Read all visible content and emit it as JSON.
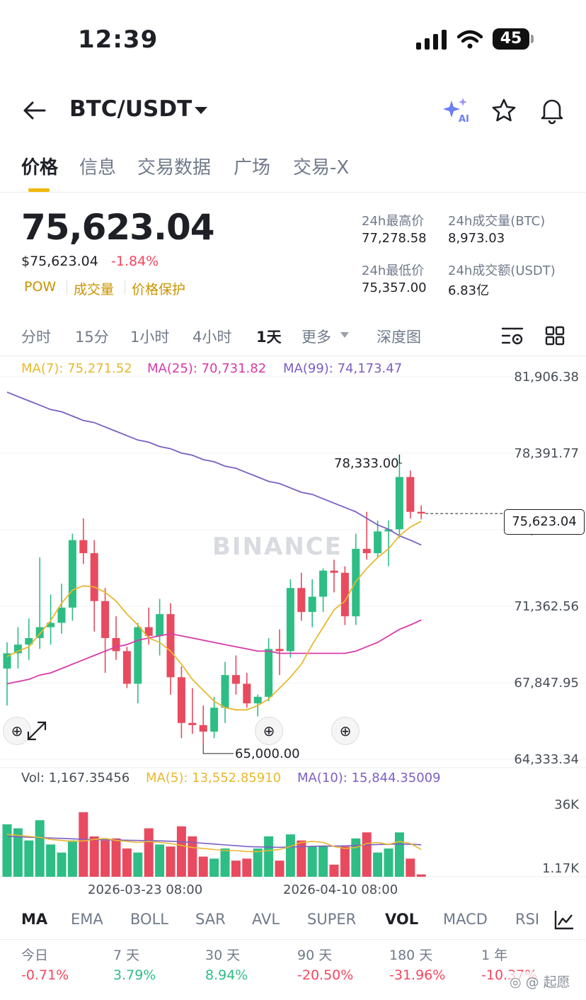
{
  "status_bar": {
    "time": "12:39",
    "battery": "45"
  },
  "header": {
    "pair": "BTC/USDT",
    "ai_badge": "AI"
  },
  "tabs": [
    {
      "label": "价格",
      "active": true
    },
    {
      "label": "信息"
    },
    {
      "label": "交易数据"
    },
    {
      "label": "广场"
    },
    {
      "label": "交易-X"
    }
  ],
  "price": {
    "last": "75,623.04",
    "usd": "$75,623.04",
    "change": "-1.84%",
    "tags": [
      "POW",
      "成交量",
      "价格保护"
    ]
  },
  "stats": {
    "high_label": "24h最高价",
    "high": "77,278.58",
    "vol_btc_label": "24h成交量(BTC)",
    "vol_btc": "8,973.03",
    "low_label": "24h最低价",
    "low": "75,357.00",
    "vol_usdt_label": "24h成交额(USDT)",
    "vol_usdt": "6.83亿"
  },
  "intervals": [
    "分时",
    "15分",
    "1小时",
    "4小时",
    "1天",
    "更多",
    "深度图"
  ],
  "active_interval": "1天",
  "ma_legend": {
    "ma7": "MA(7): 75,271.52",
    "ma25": "MA(25): 70,731.82",
    "ma99": "MA(99): 74,173.47"
  },
  "price_axis": [
    "81,906.38",
    "78,391.77",
    "74,877.16",
    "71,362.56",
    "67,847.95",
    "64,333.34"
  ],
  "annotations": {
    "high": "78,333.00",
    "low": "65,000.00",
    "current": "75,623.04"
  },
  "watermark": "BINANCE",
  "vol_legend": {
    "vol": "Vol: 1,167.35456",
    "ma5": "MA(5): 13,552.85910",
    "ma10": "MA(10): 15,844.35009"
  },
  "vol_axis": [
    "36K",
    "1.17K"
  ],
  "dates": [
    "2026-03-23 08:00",
    "2026-04-10 08:00"
  ],
  "indicators": [
    "MA",
    "EMA",
    "BOLL",
    "SAR",
    "AVL",
    "SUPER",
    "VOL",
    "MACD",
    "RSI"
  ],
  "active_indicators": [
    "MA",
    "VOL"
  ],
  "performance": [
    {
      "label": "今日",
      "value": "-0.71%",
      "dir": "down"
    },
    {
      "label": "7 天",
      "value": "3.79%",
      "dir": "up"
    },
    {
      "label": "30 天",
      "value": "8.94%",
      "dir": "up"
    },
    {
      "label": "90 天",
      "value": "-20.50%",
      "dir": "down"
    },
    {
      "label": "180 天",
      "value": "-31.96%",
      "dir": "down"
    },
    {
      "label": "1 年",
      "value": "-10.37%",
      "dir": "down"
    }
  ],
  "corner_watermark": "起愿",
  "colors": {
    "up": "#2ebd85",
    "down": "#e84a5f",
    "ma7": "#e8b82e",
    "ma25": "#d63aa8",
    "ma99": "#7b5fc4",
    "accent": "#f0b90b"
  },
  "chart_data": {
    "type": "candlestick",
    "price_range": [
      64333.34,
      81906.38
    ],
    "volume_range": [
      0,
      40000
    ],
    "annotations": {
      "high": 78333.0,
      "low": 65000.0,
      "last": 75623.04
    },
    "candles": [
      [
        68500,
        69700,
        66800,
        69200
      ],
      [
        69200,
        70400,
        68500,
        69600
      ],
      [
        69600,
        70800,
        68900,
        69900
      ],
      [
        69900,
        73600,
        69400,
        70400
      ],
      [
        70400,
        71900,
        69600,
        70600
      ],
      [
        70600,
        72400,
        70100,
        71300
      ],
      [
        71300,
        74700,
        70700,
        74400
      ],
      [
        74400,
        75400,
        73300,
        73800
      ],
      [
        73800,
        74400,
        70200,
        71600
      ],
      [
        71600,
        72200,
        68300,
        69900
      ],
      [
        69900,
        70900,
        68900,
        69300
      ],
      [
        69300,
        69500,
        67600,
        67800
      ],
      [
        67800,
        70600,
        66900,
        70400
      ],
      [
        70400,
        71300,
        69600,
        70000
      ],
      [
        70000,
        71700,
        69100,
        71000
      ],
      [
        71000,
        71500,
        67300,
        68100
      ],
      [
        68100,
        68600,
        65300,
        66000
      ],
      [
        66000,
        67600,
        65500,
        65900
      ],
      [
        65900,
        66800,
        65000,
        65600
      ],
      [
        65600,
        67200,
        65300,
        66700
      ],
      [
        66700,
        68800,
        66000,
        68200
      ],
      [
        68200,
        69100,
        67300,
        67800
      ],
      [
        67800,
        68300,
        66700,
        66900
      ],
      [
        66900,
        67300,
        66300,
        67200
      ],
      [
        67200,
        69900,
        67000,
        69400
      ],
      [
        69400,
        70300,
        68200,
        69300
      ],
      [
        69300,
        72600,
        69000,
        72200
      ],
      [
        72200,
        72900,
        70700,
        71100
      ],
      [
        71100,
        72600,
        70400,
        71800
      ],
      [
        71800,
        73100,
        71100,
        73000
      ],
      [
        73000,
        73500,
        72000,
        72900
      ],
      [
        72900,
        73200,
        70500,
        70900
      ],
      [
        70900,
        74700,
        70500,
        74000
      ],
      [
        74000,
        75700,
        73500,
        73800
      ],
      [
        73800,
        75300,
        73600,
        74800
      ],
      [
        74800,
        75300,
        73200,
        74900
      ],
      [
        74900,
        78333,
        74500,
        77300
      ],
      [
        77300,
        77600,
        75400,
        75700
      ],
      [
        75700,
        76000,
        75357,
        75623
      ]
    ],
    "ma7": [
      69050,
      69300,
      69500,
      70100,
      70700,
      71500,
      72100,
      72300,
      72250,
      72000,
      71600,
      71000,
      70500,
      69900,
      69700,
      69300,
      68700,
      68000,
      67500,
      67000,
      66700,
      66600,
      66600,
      66800,
      67100,
      67600,
      68100,
      68700,
      69600,
      70400,
      71200,
      71600,
      72500,
      73100,
      73600,
      74000,
      74600,
      75000,
      75271
    ],
    "ma25": [
      67800,
      67900,
      68000,
      68200,
      68300,
      68500,
      68700,
      68900,
      69100,
      69300,
      69500,
      69600,
      69800,
      69900,
      70000,
      70100,
      70000,
      69900,
      69800,
      69700,
      69600,
      69500,
      69400,
      69300,
      69300,
      69200,
      69200,
      69200,
      69200,
      69200,
      69200,
      69200,
      69300,
      69500,
      69700,
      70000,
      70300,
      70500,
      70731
    ],
    "ma99": [
      81200,
      81000,
      80800,
      80600,
      80400,
      80300,
      80100,
      79900,
      79800,
      79600,
      79400,
      79200,
      79000,
      78900,
      78700,
      78600,
      78400,
      78300,
      78100,
      78000,
      77800,
      77700,
      77500,
      77300,
      77100,
      77000,
      76800,
      76600,
      76500,
      76300,
      76100,
      75900,
      75700,
      75400,
      75100,
      74900,
      74600,
      74400,
      74173
    ],
    "volume": [
      26000,
      24000,
      18000,
      28000,
      16000,
      12000,
      18000,
      32000,
      20000,
      18000,
      19000,
      14000,
      12000,
      24000,
      16000,
      15000,
      25000,
      20000,
      10000,
      9000,
      14000,
      8000,
      9000,
      14000,
      20000,
      8000,
      21000,
      18000,
      15000,
      15000,
      6000,
      15000,
      19000,
      22000,
      12000,
      14000,
      22000,
      9000,
      1167
    ],
    "vol_ma5": [
      21000,
      20500,
      20000,
      19500,
      18500,
      18000,
      17500,
      17800,
      18500,
      19000,
      18000,
      17500,
      17000,
      17500,
      17000,
      16500,
      15500,
      14500,
      14000,
      13500,
      13000,
      13000,
      12500,
      12500,
      13000,
      13500,
      15000,
      17000,
      17500,
      17000,
      15000,
      14000,
      14500,
      16500,
      17000,
      16000,
      17500,
      16500,
      13552
    ],
    "vol_ma10": [
      20000,
      19800,
      19600,
      19400,
      19200,
      19000,
      18800,
      18600,
      18400,
      18300,
      18200,
      18100,
      18000,
      17900,
      17800,
      17600,
      17300,
      17000,
      16600,
      16200,
      15800,
      15400,
      15000,
      14800,
      14700,
      14600,
      14700,
      14900,
      15100,
      15200,
      15200,
      15300,
      15500,
      15800,
      16000,
      16100,
      16200,
      16100,
      15844
    ]
  }
}
